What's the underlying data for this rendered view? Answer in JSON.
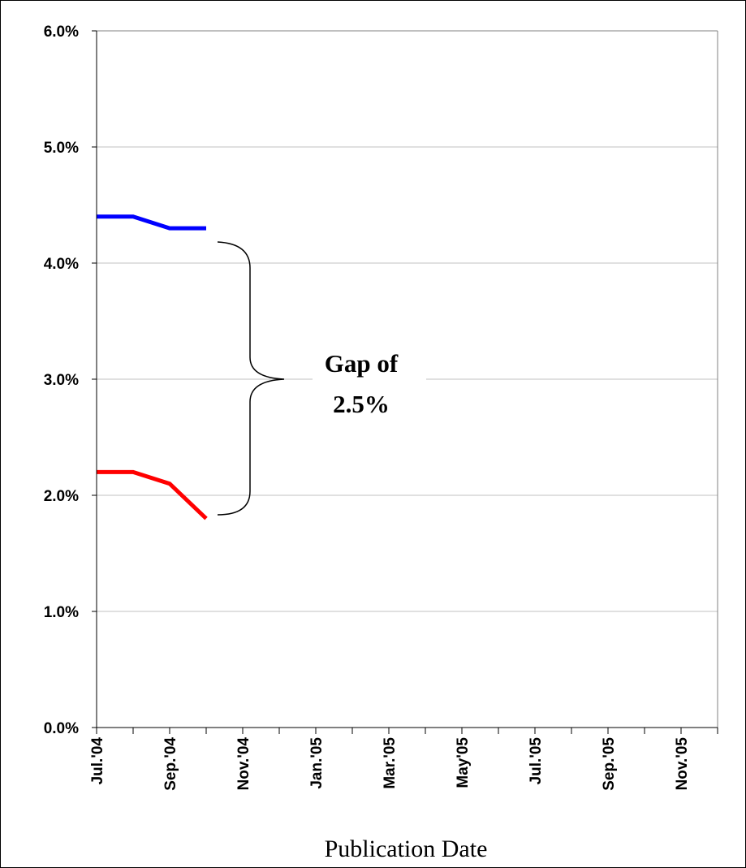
{
  "chart_data": {
    "type": "line",
    "x_label": "Publication Date",
    "annotation_lines": [
      "Gap of",
      "2.5%"
    ],
    "categories": [
      "Jul.'04",
      null,
      "Sep.'04",
      null,
      "Nov.'04",
      null,
      "Jan.'05",
      null,
      "Mar.'05",
      null,
      "May'05",
      null,
      "Jul.'05",
      null,
      "Sep.'05",
      null,
      "Nov.'05",
      null
    ],
    "series": [
      {
        "color": "#0000ff",
        "values": [
          4.4,
          4.4,
          4.3,
          4.3,
          null,
          null,
          null,
          null,
          null,
          null,
          null,
          null,
          null,
          null,
          null,
          null,
          null,
          null
        ]
      },
      {
        "color": "#ff0000",
        "values": [
          2.2,
          2.2,
          2.1,
          1.8,
          null,
          null,
          null,
          null,
          null,
          null,
          null,
          null,
          null,
          null,
          null,
          null,
          null,
          null
        ]
      }
    ],
    "ylim": [
      0,
      6
    ],
    "yticks": [
      {
        "value": 0,
        "label": "0.0%"
      },
      {
        "value": 1,
        "label": "1.0%"
      },
      {
        "value": 2,
        "label": "2.0%"
      },
      {
        "value": 3,
        "label": "3.0%"
      },
      {
        "value": 4,
        "label": "4.0%"
      },
      {
        "value": 5,
        "label": "5.0%"
      },
      {
        "value": 6,
        "label": "6.0%"
      }
    ],
    "grid": true
  }
}
